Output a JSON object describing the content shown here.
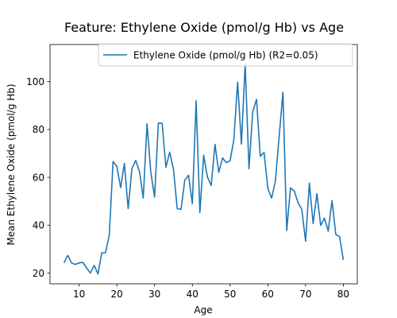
{
  "chart_data": {
    "type": "line",
    "title": "Feature: Ethylene Oxide (pmol/g Hb) vs Age",
    "xlabel": "Age",
    "ylabel": "Mean Ethylene Oxide (pmol/g Hb)",
    "xlim": [
      2.3,
      83.7
    ],
    "ylim": [
      15.5,
      115.5
    ],
    "xticks": [
      10,
      20,
      30,
      40,
      50,
      60,
      70,
      80
    ],
    "yticks": [
      20,
      40,
      60,
      80,
      100
    ],
    "grid": false,
    "legend_position": "top-right",
    "series": [
      {
        "name": "Ethylene Oxide (pmol/g Hb) (R2=0.05)",
        "color": "#1f77b4",
        "x": [
          6,
          7,
          8,
          9,
          10,
          11,
          12,
          13,
          14,
          15,
          16,
          17,
          18,
          19,
          20,
          21,
          22,
          23,
          24,
          25,
          26,
          27,
          28,
          29,
          30,
          31,
          32,
          33,
          34,
          35,
          36,
          37,
          38,
          39,
          40,
          41,
          42,
          43,
          44,
          45,
          46,
          47,
          48,
          49,
          50,
          51,
          52,
          53,
          54,
          55,
          56,
          57,
          58,
          59,
          60,
          61,
          62,
          63,
          64,
          65,
          66,
          67,
          68,
          69,
          70,
          71,
          72,
          73,
          74,
          75,
          76,
          77,
          78,
          79,
          80
        ],
        "y": [
          24.3,
          27.4,
          24.2,
          23.6,
          24.2,
          24.5,
          22.1,
          20.0,
          23.2,
          19.6,
          28.4,
          28.5,
          35.9,
          66.6,
          64.6,
          55.7,
          65.8,
          46.9,
          63.6,
          67.1,
          62.4,
          51.3,
          82.4,
          62.1,
          51.7,
          82.7,
          82.6,
          64.2,
          70.5,
          63.4,
          46.9,
          46.6,
          58.8,
          60.9,
          48.9,
          92.0,
          45.3,
          69.2,
          60.1,
          56.6,
          73.8,
          62.1,
          68.1,
          66.1,
          66.9,
          75.8,
          99.8,
          73.9,
          107.5,
          63.6,
          87.4,
          92.6,
          68.8,
          70.4,
          55.4,
          51.3,
          58.4,
          77.1,
          95.6,
          37.8,
          55.6,
          54.3,
          49.4,
          46.6,
          33.3,
          57.6,
          40.7,
          53.2,
          39.9,
          42.9,
          37.5,
          50.3,
          36.1,
          35.2,
          25.5
        ]
      }
    ]
  }
}
